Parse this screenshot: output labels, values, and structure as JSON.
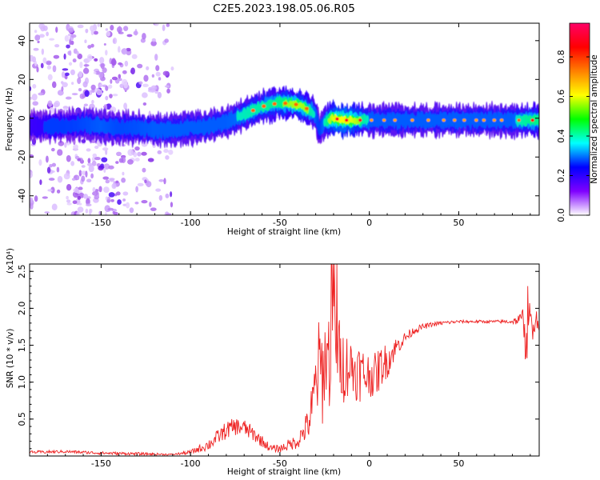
{
  "title": "C2E5.2023.198.05.06.R05",
  "chart_data": [
    {
      "type": "heatmap",
      "xlabel": "Height of straight line (km)",
      "ylabel": "Frequency (Hz)",
      "xlim": [
        -190,
        95
      ],
      "ylim": [
        -50,
        49
      ],
      "xticks": [
        -150,
        -100,
        -50,
        0,
        50
      ],
      "yticks": [
        -40,
        -20,
        0,
        20,
        40
      ],
      "colorbar": {
        "label": "Normalized spectral amplitude",
        "range": [
          0.0,
          0.97
        ],
        "ticks": [
          0.0,
          0.2,
          0.4,
          0.6,
          0.8
        ],
        "tick_labels": [
          "0.0",
          "0.2",
          "0.4",
          "0.6",
          "0.8"
        ],
        "colormap": [
          "#ffffff",
          "#7f00ff",
          "#0000ff",
          "#00ffff",
          "#00ff00",
          "#ffff00",
          "#ff8000",
          "#ff0000",
          "#ff0066"
        ]
      },
      "ridge": {
        "x": [
          -190,
          -180,
          -170,
          -160,
          -150,
          -140,
          -130,
          -120,
          -110,
          -100,
          -90,
          -80,
          -70,
          -60,
          -50,
          -40,
          -35,
          -30,
          -28,
          -25,
          -20,
          -15,
          -10,
          0,
          10,
          20,
          30,
          40,
          50,
          60,
          70,
          80,
          90,
          95
        ],
        "y": [
          -4,
          -4,
          -4,
          -3,
          -4,
          -5,
          -5,
          -6,
          -6,
          -5,
          -4,
          -2,
          2,
          6,
          8,
          7,
          5,
          2,
          -6,
          -2,
          0,
          -1,
          -1,
          -1,
          -1,
          -1,
          -1,
          -1,
          -1,
          -1,
          -1,
          -1,
          -1,
          -1
        ],
        "amp": [
          0.3,
          0.35,
          0.35,
          0.4,
          0.45,
          0.4,
          0.42,
          0.45,
          0.45,
          0.45,
          0.45,
          0.45,
          0.5,
          0.55,
          0.6,
          0.7,
          0.65,
          0.45,
          0.35,
          0.5,
          0.8,
          0.85,
          0.8,
          0.45,
          0.45,
          0.45,
          0.45,
          0.45,
          0.45,
          0.45,
          0.45,
          0.45,
          0.6,
          0.6
        ]
      },
      "scatter_region": {
        "x": [
          -190,
          -110
        ],
        "y": [
          -50,
          49
        ],
        "amp": 0.15
      }
    },
    {
      "type": "line",
      "xlabel": "Height of straight line (km)",
      "ylabel": "SNR (10 * v/v)",
      "scale_label": "(x10⁴)",
      "xlim": [
        -190,
        95
      ],
      "ylim": [
        0,
        2.6
      ],
      "xticks": [
        -150,
        -100,
        -50,
        0,
        50
      ],
      "yticks": [
        0.5,
        1.0,
        1.5,
        2.0,
        2.5
      ],
      "ytick_labels": [
        "0.5",
        "1.0",
        "1.5",
        "2.0",
        "2.5"
      ],
      "color": "#ee2222",
      "series": [
        {
          "x": [
            -190,
            -170,
            -150,
            -130,
            -110,
            -100,
            -95,
            -90,
            -85,
            -80,
            -75,
            -70,
            -65,
            -60,
            -55,
            -50,
            -45,
            -40,
            -35,
            -32,
            -30,
            -28,
            -26,
            -24,
            -22,
            -20,
            -18,
            -16,
            -14,
            -12,
            -10,
            -8,
            -6,
            -4,
            -2,
            0,
            2,
            4,
            6,
            8,
            10,
            12,
            14,
            16,
            18,
            20,
            25,
            30,
            35,
            40,
            50,
            60,
            70,
            80,
            85,
            88,
            90,
            92,
            95
          ],
          "y": [
            0.05,
            0.06,
            0.04,
            0.03,
            0.02,
            0.05,
            0.1,
            0.15,
            0.25,
            0.35,
            0.4,
            0.38,
            0.3,
            0.2,
            0.1,
            0.1,
            0.15,
            0.2,
            0.4,
            0.6,
            1.0,
            1.2,
            1.1,
            1.4,
            1.3,
            1.5,
            1.4,
            1.3,
            1.2,
            1.25,
            1.2,
            1.15,
            1.15,
            1.1,
            1.1,
            1.1,
            1.1,
            1.1,
            1.2,
            1.25,
            1.3,
            1.35,
            1.45,
            1.5,
            1.55,
            1.6,
            1.7,
            1.75,
            1.78,
            1.8,
            1.82,
            1.82,
            1.82,
            1.82,
            1.85,
            1.85,
            1.8,
            1.85,
            1.85
          ],
          "noise": [
            0.02,
            0.02,
            0.02,
            0.02,
            0.01,
            0.03,
            0.05,
            0.08,
            0.1,
            0.12,
            0.12,
            0.12,
            0.1,
            0.08,
            0.05,
            0.05,
            0.08,
            0.1,
            0.2,
            0.4,
            0.5,
            0.7,
            0.7,
            0.6,
            0.7,
            0.6,
            0.6,
            0.5,
            0.5,
            0.45,
            0.4,
            0.4,
            0.4,
            0.4,
            0.35,
            0.3,
            0.3,
            0.3,
            0.3,
            0.25,
            0.25,
            0.2,
            0.15,
            0.12,
            0.1,
            0.08,
            0.05,
            0.04,
            0.03,
            0.03,
            0.02,
            0.02,
            0.02,
            0.03,
            0.1,
            0.4,
            0.4,
            0.2,
            0.15
          ]
        }
      ]
    }
  ]
}
